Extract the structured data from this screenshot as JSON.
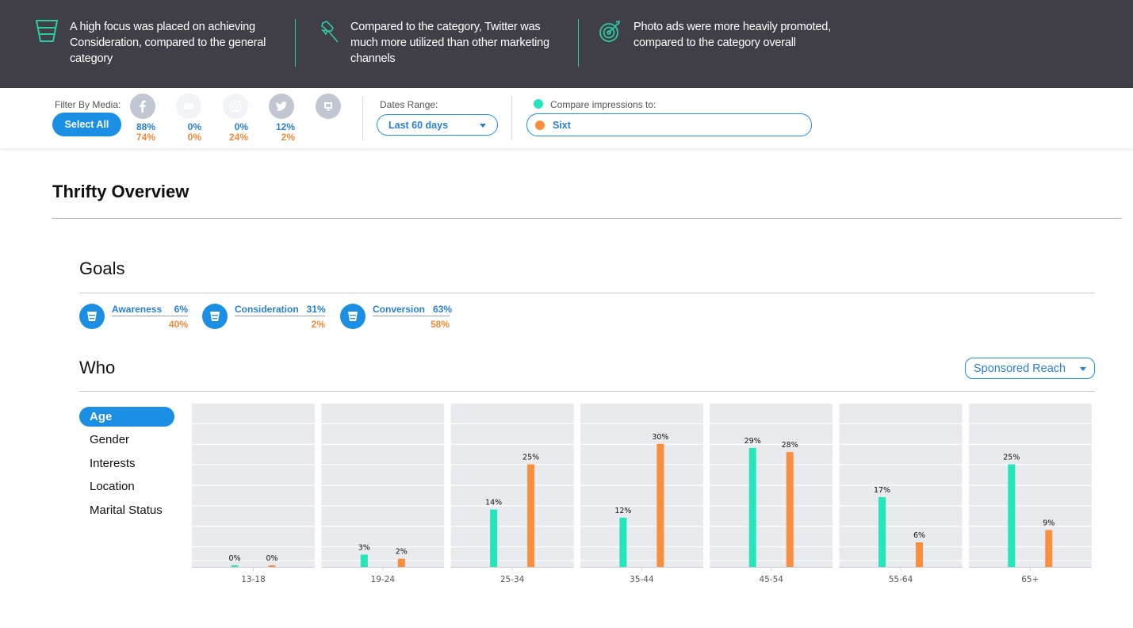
{
  "insights": [
    {
      "icon": "funnel-icon",
      "text": "A high focus was placed on achieving Consideration, compared to the general category"
    },
    {
      "icon": "pushpin-icon",
      "text": "Compared to the category, Twitter was much more utilized than other marketing channels"
    },
    {
      "icon": "target-icon",
      "text": "Photo ads were more heavily promoted, compared to the category overall"
    }
  ],
  "filter": {
    "label": "Filter By Media:",
    "select_all": "Select All",
    "media": [
      {
        "name": "facebook",
        "icon": "facebook-icon",
        "active": true,
        "primary": "88%",
        "compare": "74%"
      },
      {
        "name": "youtube",
        "icon": "youtube-icon",
        "active": false,
        "primary": "0%",
        "compare": "0%"
      },
      {
        "name": "instagram",
        "icon": "instagram-icon",
        "active": false,
        "primary": "0%",
        "compare": "24%"
      },
      {
        "name": "twitter",
        "icon": "twitter-icon",
        "active": true,
        "primary": "12%",
        "compare": "2%"
      },
      {
        "name": "display",
        "icon": "monitor-icon",
        "active": true,
        "primary": "",
        "compare": ""
      }
    ]
  },
  "dates": {
    "label": "Dates Range:",
    "value": "Last 60 days"
  },
  "compare": {
    "label": "Compare impressions to:",
    "value": "Sixt"
  },
  "colors": {
    "primary": "#24e6bd",
    "compare": "#f98f3c",
    "accent": "#1a8fe3",
    "header_bg": "#403f47",
    "insight_accent": "#2fc9a0"
  },
  "page_title": "Thrifty Overview",
  "goals": {
    "title": "Goals",
    "items": [
      {
        "label": "Awareness",
        "primary": "6%",
        "compare": "40%"
      },
      {
        "label": "Consideration",
        "primary": "31%",
        "compare": "2%"
      },
      {
        "label": "Conversion",
        "primary": "63%",
        "compare": "58%"
      }
    ]
  },
  "who": {
    "title": "Who",
    "metric": "Sponsored Reach",
    "tabs": [
      "Age",
      "Gender",
      "Interests",
      "Location",
      "Marital Status"
    ],
    "active_tab": "Age"
  },
  "chart_data": {
    "type": "bar",
    "title": "",
    "xlabel": "",
    "ylabel": "",
    "categories": [
      "13-18",
      "19-24",
      "25-34",
      "35-44",
      "45-54",
      "55-64",
      "65+"
    ],
    "series": [
      {
        "name": "Thrifty",
        "values": [
          0,
          3,
          14,
          12,
          29,
          17,
          25
        ]
      },
      {
        "name": "Sixt",
        "values": [
          0,
          2,
          25,
          30,
          28,
          6,
          9
        ]
      }
    ],
    "labels": [
      [
        "0%",
        "3%",
        "14%",
        "12%",
        "29%",
        "17%",
        "25%"
      ],
      [
        "0%",
        "2%",
        "25%",
        "30%",
        "28%",
        "6%",
        "9%"
      ]
    ],
    "ylim": [
      0,
      40
    ],
    "grid": true,
    "legend": "none"
  }
}
